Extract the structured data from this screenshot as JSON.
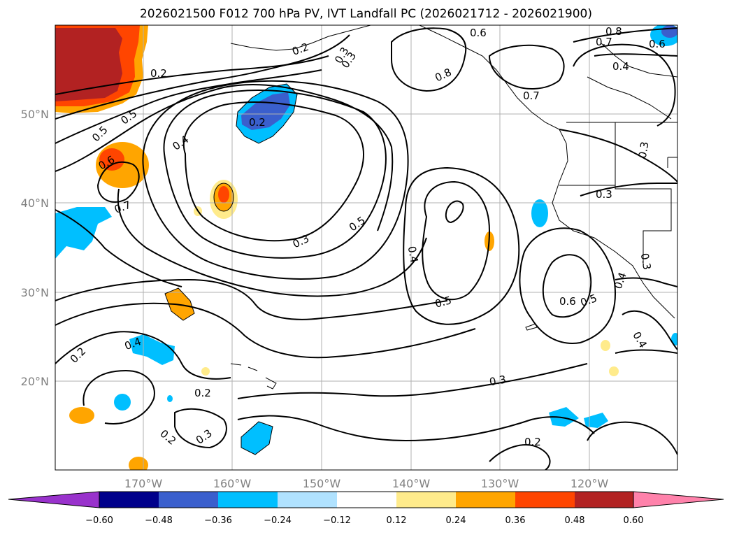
{
  "title": "2026021500 F012 700 hPa PV, IVT Landfall PC (2026021712 - 2026021900)",
  "map": {
    "lon_labels": [
      "170°W",
      "160°W",
      "150°W",
      "140°W",
      "130°W",
      "120°W"
    ],
    "lat_labels": [
      "50°N",
      "40°N",
      "30°N",
      "20°N"
    ],
    "contour_labels": [
      "0.2",
      "0.6",
      "0.8",
      "0.7",
      "0.6",
      "0.3",
      "0.2",
      "0.8",
      "0.7",
      "0.4",
      "0.2",
      "0.5",
      "0.5",
      "0.3",
      "0.6",
      "0.4",
      "0.7",
      "0.3",
      "0.5",
      "0.3",
      "0.4",
      "0.5",
      "0.3",
      "0.6",
      "0.5",
      "0.4",
      "0.3",
      "0.4",
      "0.4",
      "0.2",
      "0.2",
      "0.3",
      "0.2",
      "0.3",
      "0.2"
    ]
  },
  "colorbar": {
    "ticks": [
      "−0.60",
      "−0.48",
      "−0.36",
      "−0.24",
      "−0.12",
      "0.12",
      "0.24",
      "0.36",
      "0.48",
      "0.60"
    ],
    "colors": {
      "lt_neg": "#9932cc",
      "n060": "#00008b",
      "n048": "#3a5fcd",
      "n036": "#00bfff",
      "n024": "#b0e2ff",
      "neutral": "#ffffff",
      "p012": "#ffeb8b",
      "p024": "#ffa500",
      "p036": "#ff4500",
      "p048": "#b22222",
      "gt_pos": "#ff82ab"
    }
  }
}
